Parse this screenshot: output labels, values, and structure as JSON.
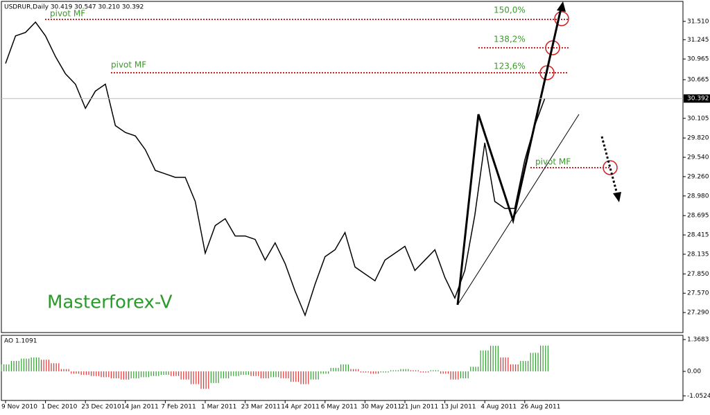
{
  "chart_data": [
    {
      "type": "line",
      "title": "USDRUR,Daily 30.419 30.547 30.210 30.392",
      "color": "#000000",
      "categories": [
        "9 Nov 2010",
        null,
        null,
        null,
        "1 Dec 2010",
        null,
        null,
        null,
        "23 Dec 2010",
        null,
        null,
        null,
        "14 Jan 2011",
        null,
        null,
        null,
        "7 Feb 2011",
        null,
        null,
        null,
        "1 Mar 2011",
        null,
        null,
        null,
        "23 Mar 2011",
        null,
        null,
        null,
        "14 Apr 2011",
        null,
        null,
        null,
        "6 May 2011",
        null,
        null,
        null,
        "30 May 2011",
        null,
        null,
        null,
        "21 Jun 2011",
        null,
        null,
        null,
        "13 Jul 2011",
        null,
        null,
        null,
        "4 Aug 2011",
        null,
        null,
        null,
        "26 Aug 2011",
        null,
        null
      ],
      "values": [
        30.9,
        31.3,
        31.35,
        31.5,
        31.3,
        31.0,
        30.75,
        30.6,
        30.25,
        30.5,
        30.6,
        30.0,
        29.9,
        29.85,
        29.65,
        29.35,
        29.3,
        29.25,
        29.25,
        28.9,
        28.15,
        28.55,
        28.65,
        28.4,
        28.4,
        28.35,
        28.05,
        28.3,
        28.0,
        27.6,
        27.25,
        27.7,
        28.1,
        28.2,
        28.45,
        27.95,
        27.85,
        27.75,
        28.05,
        28.15,
        28.25,
        27.9,
        28.05,
        28.2,
        27.8,
        27.5,
        27.9,
        28.7,
        29.75,
        28.9,
        28.8,
        28.8,
        29.5,
        30.0,
        30.39
      ],
      "ylim": [
        27.0,
        31.8
      ],
      "yticks": [
        {
          "value": 31.51,
          "label": "31.510"
        },
        31.245,
        30.965,
        30.665,
        30.105,
        {
          "value": 29.82,
          "label": "29.820"
        },
        {
          "value": 29.54,
          "label": "29.540"
        },
        {
          "value": 29.26,
          "label": "29.260"
        },
        {
          "value": 28.98,
          "label": "28.980"
        },
        28.695,
        28.415,
        28.135,
        {
          "value": 27.85,
          "label": "27.850"
        },
        {
          "value": 27.57,
          "label": "27.570"
        },
        {
          "value": 27.29,
          "label": "27.290"
        }
      ],
      "last_price": 30.392,
      "annotations": [
        "pivot MF",
        "pivot MF",
        "pivot MF",
        "150,0%",
        "138,2%",
        "123,6%",
        "Masterforex-V"
      ]
    },
    {
      "type": "bar",
      "title": "AO 1.1091",
      "up_color": "#2e9e2e",
      "down_color": "#e03030",
      "values": [
        0.3,
        0.45,
        0.55,
        0.6,
        0.5,
        0.35,
        0.1,
        -0.1,
        -0.15,
        -0.2,
        -0.25,
        -0.3,
        -0.35,
        -0.3,
        -0.25,
        -0.2,
        -0.15,
        -0.2,
        -0.35,
        -0.55,
        -0.75,
        -0.5,
        -0.3,
        -0.2,
        -0.15,
        -0.2,
        -0.3,
        -0.25,
        -0.3,
        -0.45,
        -0.55,
        -0.35,
        -0.1,
        0.15,
        0.3,
        0.1,
        -0.05,
        -0.1,
        -0.05,
        0.05,
        0.1,
        0.05,
        -0.05,
        0.05,
        -0.1,
        -0.35,
        -0.3,
        0.2,
        0.9,
        1.1,
        0.6,
        0.3,
        0.45,
        0.8,
        1.1091
      ],
      "ylim": [
        -1.25,
        1.55
      ],
      "yticks": [
        1.3683,
        {
          "value": 0,
          "label": "0.00"
        },
        -1.0524
      ]
    }
  ]
}
